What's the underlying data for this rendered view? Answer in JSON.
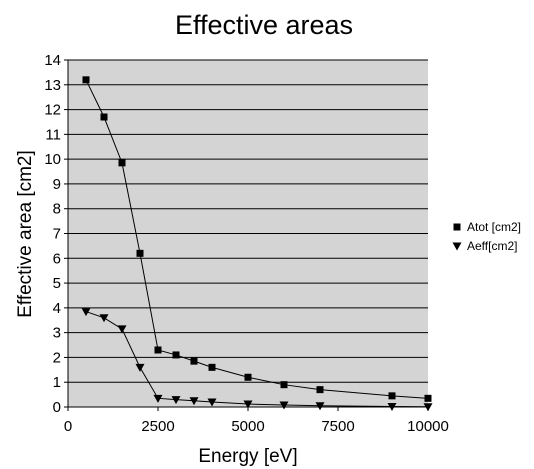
{
  "chart_data": {
    "type": "line",
    "title": "Effective areas",
    "xlabel": "Energy [eV]",
    "ylabel": "Effective area [cm2]",
    "xlim": [
      0,
      10000
    ],
    "ylim": [
      0,
      14
    ],
    "xticks": [
      0,
      2500,
      5000,
      7500,
      10000
    ],
    "yticks": [
      0,
      1,
      2,
      3,
      4,
      5,
      6,
      7,
      8,
      9,
      10,
      11,
      12,
      13,
      14
    ],
    "grid": "horizontal",
    "background": "#d4d4d4",
    "legend_position": "right",
    "series": [
      {
        "name": "Atot [cm2]",
        "marker": "square",
        "color": "#000000",
        "x": [
          500,
          1000,
          1500,
          2000,
          2500,
          3000,
          3500,
          4000,
          5000,
          6000,
          7000,
          9000,
          10000
        ],
        "y": [
          13.2,
          11.7,
          9.85,
          6.2,
          2.3,
          2.1,
          1.85,
          1.6,
          1.2,
          0.9,
          0.7,
          0.45,
          0.35
        ]
      },
      {
        "name": "Aeff[cm2]",
        "marker": "triangle-down",
        "color": "#000000",
        "x": [
          500,
          1000,
          1500,
          2000,
          2500,
          3000,
          3500,
          4000,
          5000,
          6000,
          7000,
          9000,
          10000
        ],
        "y": [
          3.85,
          3.6,
          3.15,
          1.6,
          0.35,
          0.3,
          0.25,
          0.2,
          0.12,
          0.08,
          0.05,
          0.02,
          0.01
        ]
      }
    ]
  }
}
